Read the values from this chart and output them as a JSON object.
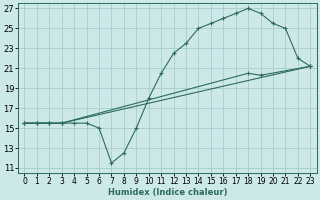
{
  "xlabel": "Humidex (Indice chaleur)",
  "bg_color": "#cce8e8",
  "grid_color": "#aacccc",
  "line_color": "#2d6b5e",
  "xlim": [
    -0.5,
    23.5
  ],
  "ylim": [
    10.5,
    27.5
  ],
  "xticks": [
    0,
    1,
    2,
    3,
    4,
    5,
    6,
    7,
    8,
    9,
    10,
    11,
    12,
    13,
    14,
    15,
    16,
    17,
    18,
    19,
    20,
    21,
    22,
    23
  ],
  "yticks": [
    11,
    13,
    15,
    17,
    19,
    21,
    23,
    25,
    27
  ],
  "series1_x": [
    0,
    1,
    2,
    3,
    4,
    5,
    6,
    7,
    8,
    9,
    10,
    11,
    12,
    13,
    14,
    15,
    16,
    17,
    18,
    19,
    20,
    21,
    22,
    23
  ],
  "series1_y": [
    15.5,
    15.5,
    15.5,
    15.5,
    15.5,
    15.5,
    15.0,
    11.5,
    12.5,
    15.0,
    18.0,
    20.5,
    22.5,
    23.5,
    25.0,
    25.5,
    26.0,
    26.5,
    27.0,
    26.5,
    25.5,
    25.0,
    22.0,
    21.2
  ],
  "series2_x": [
    0,
    1,
    2,
    3,
    23
  ],
  "series2_y": [
    15.5,
    15.5,
    15.5,
    15.5,
    21.2
  ],
  "series3_x": [
    0,
    1,
    2,
    3,
    18,
    19,
    23
  ],
  "series3_y": [
    15.5,
    15.5,
    15.5,
    15.5,
    20.5,
    20.3,
    21.2
  ]
}
